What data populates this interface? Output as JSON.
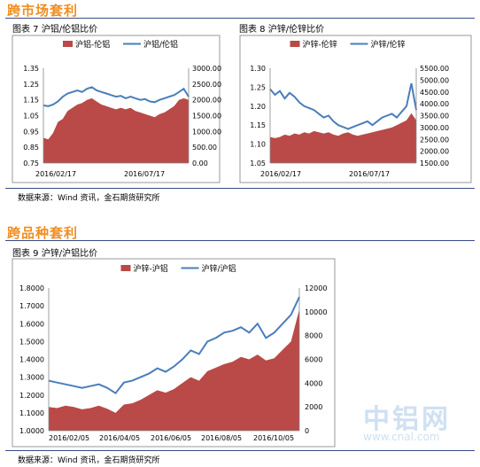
{
  "sections": {
    "market_title": "跨市场套利",
    "variety_title": "跨品种套利"
  },
  "figures": {
    "fig7_title": "图表 7 沪铝/伦铝比价",
    "fig8_title": "图表 8 沪锌/伦锌比价",
    "fig9_title": "图表 9 沪锌/沪铝比价"
  },
  "sources": {
    "source1": "数据来源：Wind 资讯，金石期货研究所",
    "source2": "数据来源：Wind 资讯，金石期货研究所"
  },
  "watermark": {
    "logo_text": "中铝网",
    "url": "www.cnal.com"
  },
  "colors": {
    "area": "#b94a48",
    "line": "#4a7ebb"
  },
  "chart_data": [
    {
      "type": "line+area",
      "legend": [
        "沪铝-伦铝",
        "沪铝/伦铝"
      ],
      "legend_position": "top",
      "x_tick_labels": [
        "2016/02/17",
        "2016/07/17"
      ],
      "y_left": {
        "ylim": [
          0.75,
          1.35
        ],
        "ticks": [
          0.75,
          0.85,
          0.95,
          1.05,
          1.15,
          1.25,
          1.35
        ]
      },
      "y_right": {
        "ylim": [
          0,
          3000
        ],
        "ticks": [
          "0.00",
          "500.00",
          "1000.00",
          "1500.00",
          "2000.00",
          "2500.00",
          "3000.00"
        ]
      },
      "series": [
        {
          "name": "沪铝-伦铝",
          "axis": "right",
          "kind": "area",
          "values": [
            800,
            750,
            950,
            1300,
            1400,
            1650,
            1750,
            1850,
            1900,
            2000,
            2050,
            1950,
            1850,
            1800,
            1750,
            1700,
            1750,
            1700,
            1750,
            1650,
            1600,
            1550,
            1500,
            1450,
            1550,
            1600,
            1700,
            1800,
            2000,
            2050,
            2000
          ]
        },
        {
          "name": "沪铝/伦铝",
          "axis": "left",
          "kind": "line",
          "values": [
            1.115,
            1.11,
            1.12,
            1.14,
            1.17,
            1.19,
            1.2,
            1.21,
            1.2,
            1.22,
            1.23,
            1.21,
            1.2,
            1.19,
            1.18,
            1.17,
            1.175,
            1.16,
            1.17,
            1.16,
            1.15,
            1.155,
            1.14,
            1.135,
            1.15,
            1.16,
            1.17,
            1.18,
            1.2,
            1.22,
            1.17
          ]
        }
      ]
    },
    {
      "type": "line+area",
      "legend": [
        "沪锌-伦锌",
        "沪锌/伦锌"
      ],
      "legend_position": "top",
      "x_tick_labels": [
        "2016/02/17",
        "2016/07/17"
      ],
      "y_left": {
        "ylim": [
          1.05,
          1.3
        ],
        "ticks": [
          1.05,
          1.1,
          1.15,
          1.2,
          1.25,
          1.3
        ]
      },
      "y_right": {
        "ylim": [
          1500,
          5500
        ],
        "ticks": [
          "1500.00",
          "2000.00",
          "2500.00",
          "3000.00",
          "3500.00",
          "4000.00",
          "4500.00",
          "5000.00",
          "5500.00"
        ]
      },
      "series": [
        {
          "name": "沪锌-伦锌",
          "axis": "right",
          "kind": "area",
          "values": [
            2600,
            2550,
            2600,
            2700,
            2650,
            2750,
            2700,
            2800,
            2750,
            2850,
            2800,
            2750,
            2800,
            2700,
            2650,
            2750,
            2800,
            2700,
            2650,
            2700,
            2750,
            2800,
            2850,
            2900,
            2950,
            3000,
            3100,
            3200,
            3300,
            3600,
            3300
          ]
        },
        {
          "name": "沪锌/伦锌",
          "axis": "left",
          "kind": "line",
          "values": [
            1.245,
            1.23,
            1.24,
            1.22,
            1.235,
            1.225,
            1.21,
            1.2,
            1.195,
            1.19,
            1.18,
            1.17,
            1.175,
            1.16,
            1.15,
            1.145,
            1.14,
            1.145,
            1.15,
            1.155,
            1.16,
            1.15,
            1.16,
            1.17,
            1.175,
            1.18,
            1.17,
            1.185,
            1.2,
            1.26,
            1.19
          ]
        }
      ]
    },
    {
      "type": "line+area",
      "legend": [
        "沪锌-沪铝",
        "沪锌/沪铝"
      ],
      "legend_position": "top",
      "x_tick_labels": [
        "2016/02/05",
        "2016/04/05",
        "2016/06/05",
        "2016/08/05",
        "2016/10/05"
      ],
      "y_left": {
        "ylim": [
          1.0,
          1.8
        ],
        "ticks": [
          "1.0000",
          "1.1000",
          "1.2000",
          "1.3000",
          "1.4000",
          "1.5000",
          "1.6000",
          "1.7000",
          "1.8000"
        ]
      },
      "y_right": {
        "ylim": [
          0,
          12000
        ],
        "ticks": [
          "0",
          "2000",
          "4000",
          "6000",
          "8000",
          "10000",
          "12000"
        ]
      },
      "series": [
        {
          "name": "沪锌-沪铝",
          "axis": "right",
          "kind": "area",
          "values": [
            2000,
            1900,
            2100,
            2000,
            1800,
            1900,
            2100,
            1850,
            1500,
            2200,
            2300,
            2600,
            3000,
            3400,
            3200,
            3500,
            4000,
            4500,
            4200,
            5000,
            5300,
            5600,
            5800,
            6200,
            6000,
            6400,
            5900,
            6100,
            6800,
            7500,
            10200
          ]
        },
        {
          "name": "沪锌/沪铝",
          "axis": "left",
          "kind": "line",
          "values": [
            1.28,
            1.27,
            1.26,
            1.25,
            1.24,
            1.25,
            1.26,
            1.24,
            1.21,
            1.27,
            1.28,
            1.3,
            1.32,
            1.35,
            1.33,
            1.36,
            1.4,
            1.45,
            1.43,
            1.5,
            1.52,
            1.55,
            1.56,
            1.58,
            1.55,
            1.6,
            1.52,
            1.55,
            1.6,
            1.65,
            1.75
          ]
        }
      ]
    }
  ]
}
